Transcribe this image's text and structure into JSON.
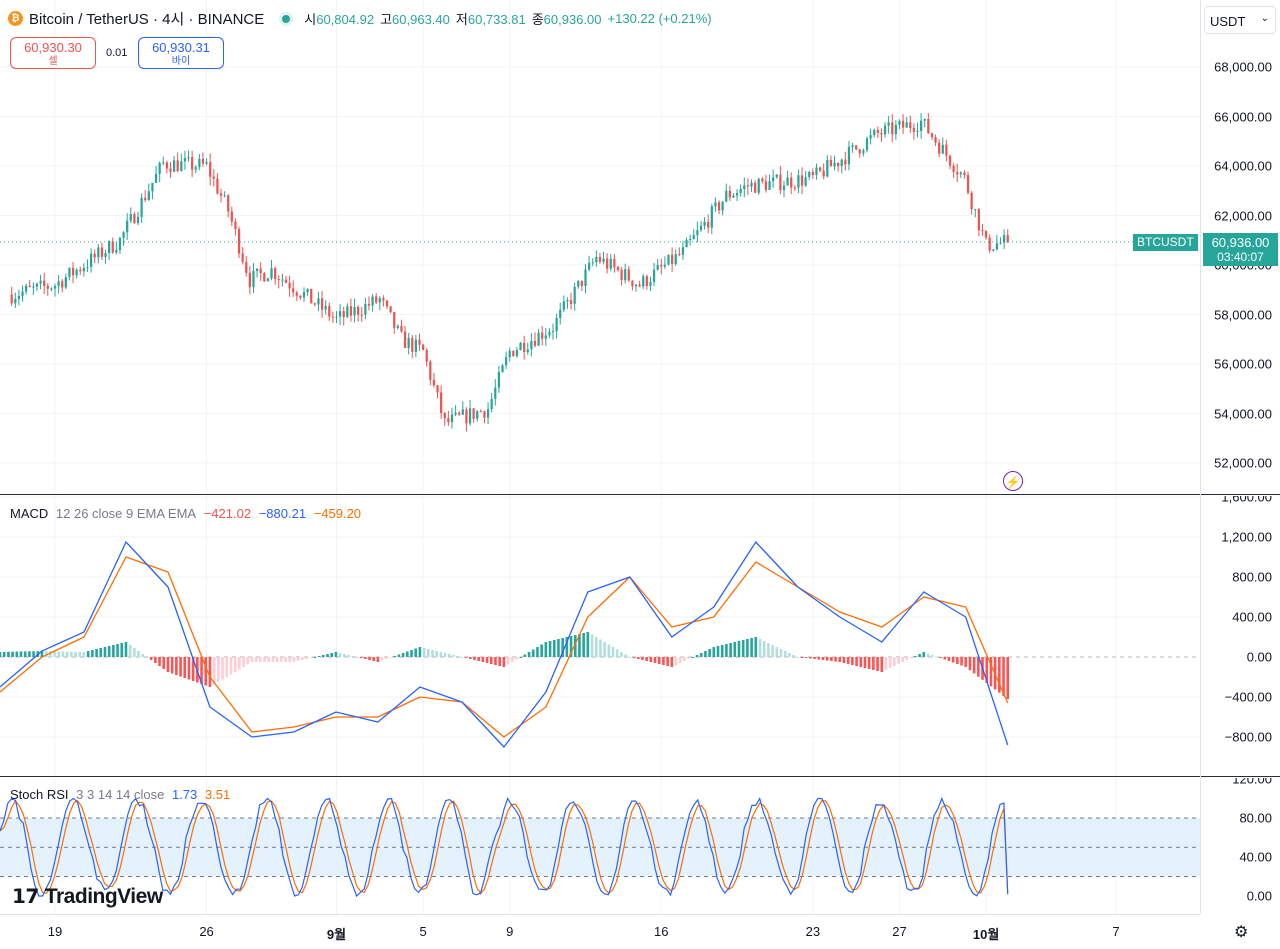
{
  "header": {
    "symbol_icon": "₿",
    "title": "Bitcoin / TetherUS · 4시 · BINANCE",
    "ohlc": [
      {
        "label": "시",
        "value": "60,804.92"
      },
      {
        "label": "고",
        "value": "60,963.40"
      },
      {
        "label": "저",
        "value": "60,733.81"
      },
      {
        "label": "종",
        "value": "60,936.00"
      }
    ],
    "change": "+130.22 (+0.21%)"
  },
  "trade": {
    "sell_price": "60,930.30",
    "sell_label": "셀",
    "spread": "0.01",
    "buy_price": "60,930.31",
    "buy_label": "바이"
  },
  "currency": {
    "label": "USDT",
    "icon": "chevron-down-icon"
  },
  "price_axis": {
    "ticks": [
      "68,000.00",
      "66,000.00",
      "64,000.00",
      "62,000.00",
      "60,000.00",
      "58,000.00",
      "56,000.00",
      "54,000.00",
      "52,000.00"
    ]
  },
  "last_price": {
    "symbol": "BTCUSDT",
    "price": "60,936.00",
    "countdown": "03:40:07"
  },
  "macd": {
    "legend_name": "MACD",
    "legend_params": "12 26 close 9 EMA EMA",
    "hist_value": "−421.02",
    "macd_value": "−880.21",
    "signal_value": "−459.20",
    "axis_ticks": [
      "1,600.00",
      "1,200.00",
      "800.00",
      "400.00",
      "0.00",
      "−400.00",
      "−800.00"
    ]
  },
  "stoch": {
    "legend_name": "Stoch RSI",
    "legend_params": "3 3 14 14 close",
    "k_value": "1.73",
    "d_value": "3.51",
    "axis_ticks": [
      "120.00",
      "80.00",
      "40.00",
      "0.00"
    ]
  },
  "time_axis": {
    "labels": [
      "19",
      "26",
      "9월",
      "5",
      "9",
      "16",
      "23",
      "27",
      "10월",
      "7"
    ]
  },
  "branding": {
    "logo": "TradingView"
  },
  "colors": {
    "up": "#26a69a",
    "down": "#ef5350",
    "macd_line": "#2962ff",
    "signal_line": "#ff6d00",
    "hist_up_strong": "#26a69a",
    "hist_up_weak": "#b2dfdb",
    "hist_down_strong": "#ff5252",
    "hist_down_weak": "#ffcdd2",
    "stoch_k": "#2962ff",
    "stoch_d": "#ff6d00",
    "stoch_band": "#e3f2fd"
  },
  "chart_data": [
    {
      "type": "candlestick",
      "title": "Bitcoin / TetherUS · 4시 · BINANCE",
      "ylim": [
        51000,
        69000
      ],
      "x_ticks": [
        "19",
        "26",
        "9월",
        "5",
        "9",
        "16",
        "23",
        "27",
        "10월",
        "7"
      ],
      "anchors": [
        {
          "x": "Aug 17",
          "close": 58800
        },
        {
          "x": "Aug 19",
          "close": 59200
        },
        {
          "x": "Aug 22",
          "close": 61000
        },
        {
          "x": "Aug 24",
          "close": 64100
        },
        {
          "x": "Aug 26",
          "close": 64000
        },
        {
          "x": "Aug 27",
          "close": 62200
        },
        {
          "x": "Aug 28",
          "close": 59400
        },
        {
          "x": "Aug 29",
          "close": 59800
        },
        {
          "x": "Sep 1",
          "close": 57800
        },
        {
          "x": "Sep 3",
          "close": 58600
        },
        {
          "x": "Sep 4",
          "close": 57000
        },
        {
          "x": "Sep 5",
          "close": 56500
        },
        {
          "x": "Sep 6",
          "close": 53600
        },
        {
          "x": "Sep 8",
          "close": 54200
        },
        {
          "x": "Sep 9",
          "close": 56500
        },
        {
          "x": "Sep 11",
          "close": 57500
        },
        {
          "x": "Sep 13",
          "close": 60300
        },
        {
          "x": "Sep 15",
          "close": 59200
        },
        {
          "x": "Sep 17",
          "close": 60500
        },
        {
          "x": "Sep 19",
          "close": 62800
        },
        {
          "x": "Sep 20",
          "close": 63200
        },
        {
          "x": "Sep 23",
          "close": 63500
        },
        {
          "x": "Sep 26",
          "close": 65300
        },
        {
          "x": "Sep 28",
          "close": 65800
        },
        {
          "x": "Sep 30",
          "close": 63500
        },
        {
          "x": "Oct 1",
          "close": 60800
        },
        {
          "x": "Oct 2",
          "close": 60936
        }
      ]
    },
    {
      "type": "line",
      "name": "MACD 12 26 close 9 EMA EMA",
      "ylim": [
        -1000,
        1600
      ],
      "series": [
        {
          "name": "MACD",
          "values": [
            -300,
            60,
            250,
            1150,
            700,
            -500,
            -800,
            -750,
            -550,
            -650,
            -300,
            -450,
            -900,
            -350,
            650,
            800,
            200,
            500,
            1150,
            700,
            400,
            150,
            650,
            400,
            -880
          ]
        },
        {
          "name": "Signal",
          "values": [
            -350,
            0,
            200,
            1000,
            850,
            -200,
            -750,
            -700,
            -600,
            -600,
            -400,
            -450,
            -800,
            -500,
            400,
            800,
            300,
            400,
            950,
            700,
            450,
            300,
            600,
            500,
            -459
          ]
        }
      ],
      "last_histogram": -421.02
    },
    {
      "type": "line",
      "name": "Stoch RSI 3 3 14 14 close",
      "ylim": [
        -10,
        120
      ],
      "bands": [
        20,
        50,
        80
      ],
      "series": [
        {
          "name": "K",
          "last": 1.73
        },
        {
          "name": "D",
          "last": 3.51
        }
      ]
    }
  ]
}
